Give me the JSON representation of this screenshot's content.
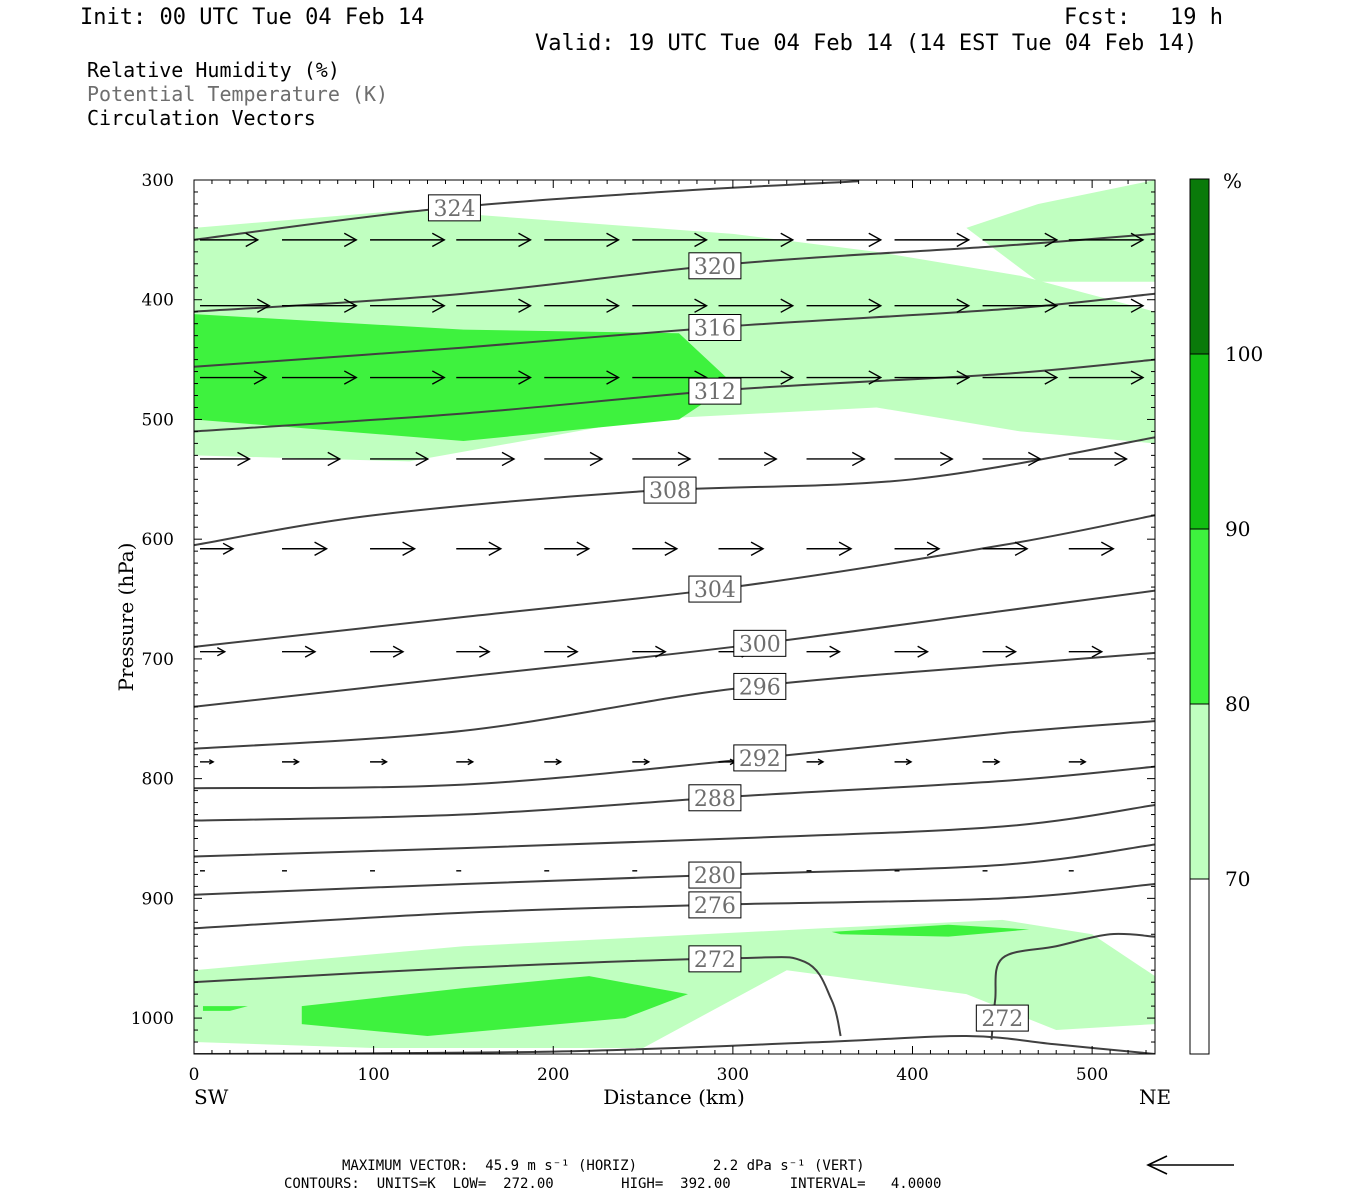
{
  "header": {
    "init": "Init: 00 UTC Tue 04 Feb 14",
    "fcst": "Fcst:   19 h",
    "valid": "Valid: 19 UTC Tue 04 Feb 14 (14 EST Tue 04 Feb 14)"
  },
  "legend": {
    "rh": "Relative Humidity (%)",
    "theta": "Potential Temperature (K)",
    "vectors": "Circulation Vectors"
  },
  "colors": {
    "rh_70_80": "#c0ffc0",
    "rh_80_90": "#3ef23e",
    "rh_90_100": "#12bf12",
    "rh_100": "#0a7a0a",
    "contour": "#404040",
    "theta_text": "#6e6e6e"
  },
  "colorbar": {
    "unit": "%",
    "levels": [
      "100",
      "90",
      "80",
      "70"
    ]
  },
  "footer": {
    "line1": "MAXIMUM VECTOR:  45.9 m s⁻¹ (HORIZ)         2.2 dPa s⁻¹ (VERT)",
    "line2": "CONTOURS:  UNITS=K  LOW=  272.00        HIGH=  392.00       INTERVAL=   4.0000"
  },
  "chart_data": {
    "type": "cross-section",
    "xlabel": "Distance (km)",
    "ylabel": "Pressure (hPa)",
    "xlim": [
      0,
      535
    ],
    "ylim": [
      1030,
      300
    ],
    "x_ticks": [
      "0",
      "100",
      "200",
      "300",
      "400",
      "500"
    ],
    "y_ticks": [
      "300",
      "400",
      "500",
      "600",
      "700",
      "800",
      "900",
      "1000"
    ],
    "x_ends": {
      "left": "SW",
      "right": "NE"
    },
    "theta_contours": [
      {
        "label": "324",
        "x": [
          0,
          130,
          260,
          370
        ],
        "p": [
          350,
          325,
          310,
          301
        ]
      },
      {
        "label": "320",
        "x": [
          0,
          150,
          300,
          450,
          535
        ],
        "p": [
          410,
          395,
          370,
          355,
          345
        ]
      },
      {
        "label": "316",
        "x": [
          0,
          150,
          300,
          450,
          535
        ],
        "p": [
          456,
          440,
          422,
          408,
          395
        ]
      },
      {
        "label": "312",
        "x": [
          0,
          150,
          300,
          450,
          535
        ],
        "p": [
          510,
          495,
          475,
          462,
          450
        ]
      },
      {
        "label": "308",
        "x": [
          0,
          100,
          250,
          400,
          535
        ],
        "p": [
          605,
          580,
          560,
          550,
          515
        ]
      },
      {
        "label": "304",
        "x": [
          0,
          150,
          300,
          450,
          535
        ],
        "p": [
          690,
          665,
          640,
          605,
          580
        ]
      },
      {
        "label": "300",
        "x": [
          0,
          150,
          300,
          450,
          535
        ],
        "p": [
          740,
          715,
          690,
          660,
          643
        ]
      },
      {
        "label": "296",
        "x": [
          0,
          150,
          300,
          450,
          535
        ],
        "p": [
          775,
          760,
          725,
          705,
          695
        ]
      },
      {
        "label": "292",
        "x": [
          0,
          150,
          300,
          450,
          535
        ],
        "p": [
          808,
          805,
          785,
          762,
          752
        ]
      },
      {
        "label": "288",
        "x": [
          0,
          150,
          300,
          450,
          535
        ],
        "p": [
          835,
          830,
          815,
          802,
          790
        ]
      },
      {
        "label": "",
        "x": [
          0,
          150,
          300,
          450,
          535
        ],
        "p": [
          865,
          858,
          850,
          840,
          822
        ]
      },
      {
        "label": "280",
        "x": [
          0,
          150,
          300,
          450,
          535
        ],
        "p": [
          897,
          888,
          880,
          872,
          855
        ]
      },
      {
        "label": "276",
        "x": [
          0,
          150,
          300,
          450,
          535
        ],
        "p": [
          925,
          912,
          905,
          900,
          888
        ]
      },
      {
        "label": "272",
        "x": [
          0,
          150,
          300,
          340,
          355,
          360
        ],
        "p": [
          970,
          958,
          950,
          953,
          985,
          1015
        ]
      },
      {
        "label": "272",
        "x": [
          444,
          446,
          450,
          480,
          510,
          535
        ],
        "p": [
          1018,
          985,
          950,
          940,
          930,
          932
        ]
      },
      {
        "label": "",
        "x": [
          0,
          200,
          350,
          430,
          480,
          535
        ],
        "p": [
          1030,
          1028,
          1020,
          1015,
          1022,
          1030
        ]
      }
    ],
    "rh_regions": [
      {
        "level": "70-80",
        "x": [
          0,
          120,
          300,
          380,
          460,
          535,
          535,
          460,
          380,
          250,
          120,
          0
        ],
        "p": [
          340,
          325,
          345,
          360,
          380,
          410,
          520,
          510,
          490,
          500,
          535,
          530
        ]
      },
      {
        "level": "70-80",
        "x": [
          430,
          470,
          535,
          535,
          470
        ],
        "p": [
          340,
          320,
          300,
          385,
          385
        ]
      },
      {
        "level": "70-80",
        "x": [
          0,
          150,
          350,
          450,
          500,
          535,
          535,
          480,
          430,
          330,
          250,
          100,
          0
        ],
        "p": [
          960,
          940,
          925,
          918,
          930,
          965,
          1005,
          1010,
          980,
          960,
          1025,
          1025,
          1020
        ]
      },
      {
        "level": "80-90",
        "x": [
          0,
          150,
          270,
          300,
          270,
          150,
          0
        ],
        "p": [
          412,
          425,
          428,
          470,
          500,
          518,
          500
        ]
      },
      {
        "level": "80-90",
        "x": [
          60,
          150,
          220,
          275,
          240,
          130,
          60
        ],
        "p": [
          990,
          975,
          965,
          980,
          1000,
          1015,
          1005
        ]
      },
      {
        "level": "80-90",
        "x": [
          355,
          420,
          465,
          420,
          360
        ],
        "p": [
          928,
          922,
          926,
          932,
          930
        ]
      },
      {
        "level": "80-90",
        "x": [
          5,
          30,
          20,
          5
        ],
        "p": [
          990,
          990,
          994,
          994
        ]
      }
    ],
    "vector_rows": [
      {
        "p": 350,
        "x": [
          0,
          49,
          98,
          146,
          195,
          244,
          292,
          341,
          390,
          439,
          487,
          535
        ],
        "u": [
          35,
          45,
          45,
          45,
          45,
          45,
          45,
          45,
          45,
          45,
          45,
          45
        ]
      },
      {
        "p": 405,
        "x": [
          0,
          49,
          98,
          146,
          195,
          244,
          292,
          341,
          390,
          439,
          487
        ],
        "u": [
          42,
          45,
          45,
          45,
          45,
          45,
          45,
          45,
          45,
          45,
          45
        ]
      },
      {
        "p": 465,
        "x": [
          0,
          49,
          98,
          146,
          195,
          244,
          292,
          341,
          390,
          439,
          487
        ],
        "u": [
          40,
          45,
          45,
          45,
          45,
          45,
          45,
          45,
          45,
          45,
          45
        ]
      },
      {
        "p": 533,
        "x": [
          0,
          49,
          98,
          146,
          195,
          244,
          292,
          341,
          390,
          439,
          487
        ],
        "u": [
          30,
          35,
          35,
          35,
          35,
          35,
          35,
          35,
          35,
          35,
          35
        ]
      },
      {
        "p": 608,
        "x": [
          0,
          49,
          98,
          146,
          195,
          244,
          292,
          341,
          390,
          439,
          487
        ],
        "u": [
          20,
          27,
          27,
          27,
          27,
          27,
          27,
          27,
          27,
          27,
          27
        ]
      },
      {
        "p": 694,
        "x": [
          0,
          49,
          98,
          146,
          195,
          244,
          292,
          341,
          390,
          439,
          487
        ],
        "u": [
          15,
          20,
          20,
          20,
          20,
          20,
          20,
          20,
          20,
          20,
          20
        ]
      },
      {
        "p": 786,
        "x": [
          0,
          49,
          98,
          146,
          195,
          244,
          292,
          341,
          390,
          439,
          487
        ],
        "u": [
          8,
          10,
          10,
          10,
          10,
          10,
          10,
          10,
          10,
          10,
          10
        ]
      },
      {
        "p": 877,
        "x": [
          0,
          49,
          98,
          146,
          195,
          244,
          292,
          341,
          390,
          439,
          487
        ],
        "u": [
          3,
          3,
          3,
          3,
          3,
          3,
          3,
          3,
          3,
          3,
          3
        ]
      }
    ]
  }
}
